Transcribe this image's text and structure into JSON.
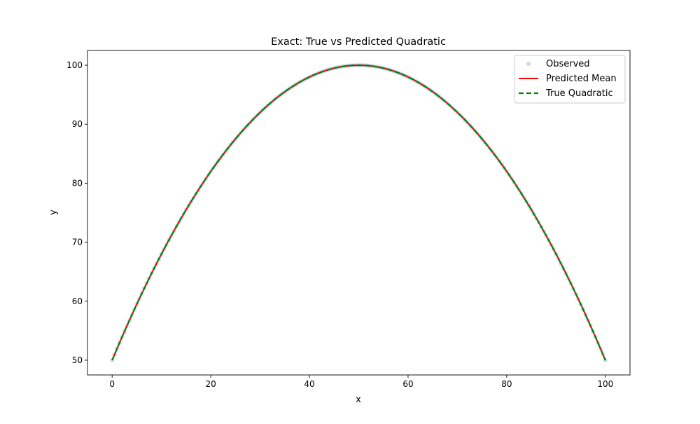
{
  "chart_data": {
    "type": "line",
    "title": "Exact: True vs Predicted Quadratic",
    "xlabel": "x",
    "ylabel": "y",
    "xlim": [
      -5,
      105
    ],
    "ylim": [
      47.5,
      102.5
    ],
    "xticks": [
      0,
      20,
      40,
      60,
      80,
      100
    ],
    "yticks": [
      50,
      60,
      70,
      80,
      90,
      100
    ],
    "grid": false,
    "legend_position": "upper right",
    "function": "y = 100 - 0.02 * (x - 50)^2",
    "x_range": [
      0,
      100
    ],
    "series": [
      {
        "name": "Observed",
        "kind": "scatter",
        "color": "#1f77b4",
        "alpha": 0.25
      },
      {
        "name": "Predicted Mean",
        "kind": "line",
        "style": "solid",
        "color": "#ff0000"
      },
      {
        "name": "True Quadratic",
        "kind": "line",
        "style": "dashed",
        "color": "#008000"
      }
    ]
  }
}
